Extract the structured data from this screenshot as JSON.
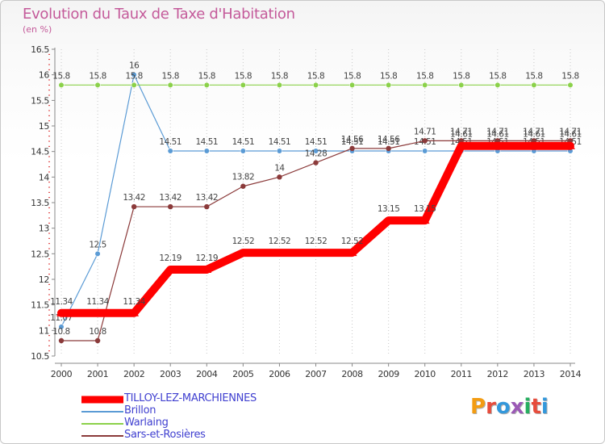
{
  "header": {
    "title": "Evolution du Taux de Taxe d'Habitation",
    "unit": "(en %)"
  },
  "logo": {
    "text": "Proxiti",
    "letters": [
      {
        "ch": "P",
        "color": "#f39c12"
      },
      {
        "ch": "r",
        "color": "#e74c3c"
      },
      {
        "ch": "o",
        "color": "#3498db"
      },
      {
        "ch": "x",
        "color": "#9b59b6"
      },
      {
        "ch": "i",
        "color": "#27ae60"
      },
      {
        "ch": "t",
        "color": "#e74c3c"
      },
      {
        "ch": "i",
        "color": "#3498db"
      }
    ]
  },
  "chart_data": {
    "type": "line",
    "title": "Evolution du Taux de Taxe d'Habitation",
    "ylabel": "(en %)",
    "xlabel": "",
    "x": [
      "2000",
      "2001",
      "2002",
      "2003",
      "2004",
      "2005",
      "2006",
      "2007",
      "2008",
      "2009",
      "2010",
      "2011",
      "2012",
      "2013",
      "2014"
    ],
    "ylim": [
      10.5,
      16.5
    ],
    "yticks": [
      "10.5",
      "11",
      "11.5",
      "12",
      "12.5",
      "13",
      "13.5",
      "14",
      "14.5",
      "15",
      "15.5",
      "16",
      "16.5"
    ],
    "grid": "vertical dotted",
    "legend_position": "bottom-left",
    "series": [
      {
        "name": "TILLOY-LEZ-MARCHIENNES",
        "color": "#ff0000",
        "style": "thick",
        "values": [
          11.34,
          11.34,
          11.34,
          12.19,
          12.19,
          12.52,
          12.52,
          12.52,
          12.52,
          13.15,
          13.15,
          14.61,
          14.61,
          14.61,
          14.61
        ],
        "labels": [
          "11.34",
          "11.34",
          "11.34",
          "12.19",
          "12.19",
          "12.52",
          "12.52",
          "12.52",
          "12.52",
          "13.15",
          "13.15",
          "14.61",
          "14.61",
          "14.61",
          "14.61"
        ]
      },
      {
        "name": "Brillon",
        "color": "#5b9bd5",
        "style": "thin",
        "values": [
          11.07,
          12.5,
          16,
          14.51,
          14.51,
          14.51,
          14.51,
          14.51,
          14.51,
          14.51,
          14.51,
          14.51,
          14.51,
          14.51,
          14.51
        ],
        "labels": [
          "11.07",
          "12.5",
          "16",
          "14.51",
          "14.51",
          "14.51",
          "14.51",
          "14.51",
          "14.51",
          "14.51",
          "14.51",
          "14.51",
          "14.51",
          "14.51",
          "14.51"
        ]
      },
      {
        "name": "Warlaing",
        "color": "#8bd14a",
        "style": "thin",
        "values": [
          15.8,
          15.8,
          15.8,
          15.8,
          15.8,
          15.8,
          15.8,
          15.8,
          15.8,
          15.8,
          15.8,
          15.8,
          15.8,
          15.8,
          15.8
        ],
        "labels": [
          "15.8",
          "15.8",
          "15.8",
          "15.8",
          "15.8",
          "15.8",
          "15.8",
          "15.8",
          "15.8",
          "15.8",
          "15.8",
          "15.8",
          "15.8",
          "15.8",
          "15.8"
        ]
      },
      {
        "name": "Sars-et-Rosières",
        "color": "#8b3a3a",
        "style": "thin",
        "values": [
          10.8,
          10.8,
          13.42,
          13.42,
          13.42,
          13.82,
          14,
          14.28,
          14.56,
          14.56,
          14.71,
          14.71,
          14.71,
          14.71,
          14.71
        ],
        "labels": [
          "10.8",
          "10.8",
          "13.42",
          "13.42",
          "13.42",
          "13.82",
          "14",
          "14.28",
          "14.56",
          "14.56",
          "14.71",
          "14.71",
          "14.71",
          "14.71",
          "14.71"
        ]
      }
    ]
  }
}
